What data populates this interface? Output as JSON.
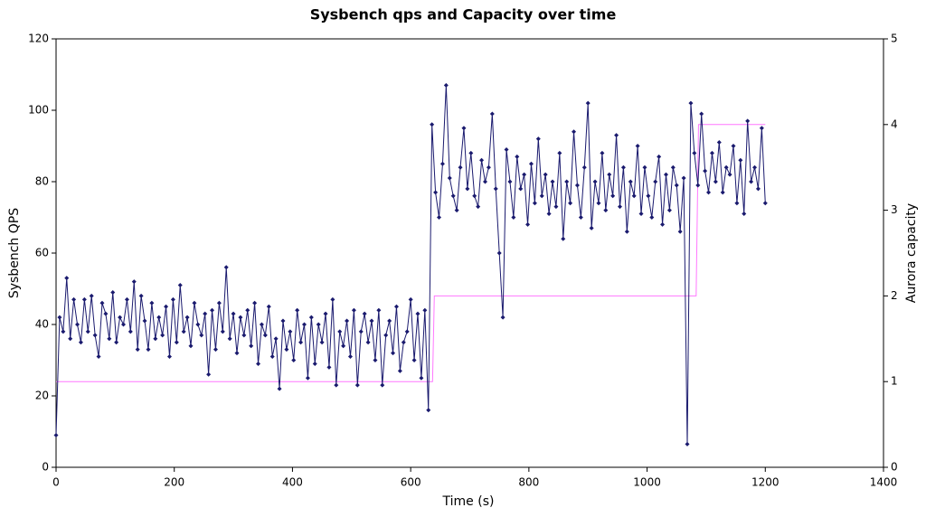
{
  "chart_data": {
    "type": "line",
    "title": "Sysbench qps and Capacity over time",
    "x_label": "Time (s)",
    "y_label": "Sysbench QPS",
    "y2_label": "Aurora capacity",
    "xlim": [
      0,
      1400
    ],
    "xticks": [
      0,
      200,
      400,
      600,
      800,
      1000,
      1200,
      1400
    ],
    "ylim": [
      0,
      120
    ],
    "yticks": [
      0,
      20,
      40,
      60,
      80,
      100,
      120
    ],
    "y2lim": [
      0,
      5
    ],
    "y2ticks": [
      0,
      1,
      2,
      3,
      4,
      5
    ],
    "series": [
      {
        "name": "Sysbench QPS",
        "color": "#1a1a6e",
        "markers": true,
        "x": [
          0,
          6,
          12,
          18,
          24,
          30,
          36,
          42,
          48,
          54,
          60,
          66,
          72,
          78,
          84,
          90,
          96,
          102,
          108,
          114,
          120,
          126,
          132,
          138,
          144,
          150,
          156,
          162,
          168,
          174,
          180,
          186,
          192,
          198,
          204,
          210,
          216,
          222,
          228,
          234,
          240,
          246,
          252,
          258,
          264,
          270,
          276,
          282,
          288,
          294,
          300,
          306,
          312,
          318,
          324,
          330,
          336,
          342,
          348,
          354,
          360,
          366,
          372,
          378,
          384,
          390,
          396,
          402,
          408,
          414,
          420,
          426,
          432,
          438,
          444,
          450,
          456,
          462,
          468,
          474,
          480,
          486,
          492,
          498,
          504,
          510,
          516,
          522,
          528,
          534,
          540,
          546,
          552,
          558,
          564,
          570,
          576,
          582,
          588,
          594,
          600,
          606,
          612,
          618,
          624,
          630,
          636,
          642,
          648,
          654,
          660,
          666,
          672,
          678,
          684,
          690,
          696,
          702,
          708,
          714,
          720,
          726,
          732,
          738,
          744,
          750,
          756,
          762,
          768,
          774,
          780,
          786,
          792,
          798,
          804,
          810,
          816,
          822,
          828,
          834,
          840,
          846,
          852,
          858,
          864,
          870,
          876,
          882,
          888,
          894,
          900,
          906,
          912,
          918,
          924,
          930,
          936,
          942,
          948,
          954,
          960,
          966,
          972,
          978,
          984,
          990,
          996,
          1002,
          1008,
          1014,
          1020,
          1026,
          1032,
          1038,
          1044,
          1050,
          1056,
          1062,
          1068,
          1074,
          1080,
          1086,
          1092,
          1098,
          1104,
          1110,
          1116,
          1122,
          1128,
          1134,
          1140,
          1146,
          1152,
          1158,
          1164,
          1170,
          1176,
          1182,
          1188,
          1194,
          1200
        ],
        "values": [
          9,
          42,
          38,
          53,
          36,
          47,
          40,
          35,
          47,
          38,
          48,
          37,
          31,
          46,
          43,
          36,
          49,
          35,
          42,
          40,
          47,
          38,
          52,
          33,
          48,
          41,
          33,
          46,
          36,
          42,
          37,
          45,
          31,
          47,
          35,
          51,
          38,
          42,
          34,
          46,
          40,
          37,
          43,
          26,
          44,
          33,
          46,
          38,
          56,
          36,
          43,
          32,
          42,
          37,
          44,
          34,
          46,
          29,
          40,
          37,
          45,
          31,
          36,
          22,
          41,
          33,
          38,
          30,
          44,
          35,
          40,
          25,
          42,
          29,
          40,
          35,
          43,
          28,
          47,
          23,
          38,
          34,
          41,
          31,
          44,
          23,
          38,
          43,
          35,
          41,
          30,
          44,
          23,
          37,
          41,
          32,
          45,
          27,
          35,
          38,
          47,
          30,
          43,
          25,
          44,
          16,
          96,
          77,
          70,
          85,
          107,
          81,
          76,
          72,
          84,
          95,
          78,
          88,
          76,
          73,
          86,
          80,
          84,
          99,
          78,
          60,
          42,
          89,
          80,
          70,
          87,
          78,
          82,
          68,
          85,
          74,
          92,
          76,
          82,
          71,
          80,
          73,
          88,
          64,
          80,
          74,
          94,
          79,
          70,
          84,
          102,
          67,
          80,
          74,
          88,
          72,
          82,
          76,
          93,
          73,
          84,
          66,
          80,
          76,
          90,
          71,
          84,
          76,
          70,
          80,
          87,
          68,
          82,
          72,
          84,
          79,
          66,
          81,
          6.5,
          102,
          88,
          79,
          99,
          83,
          77,
          88,
          80,
          91,
          77,
          84,
          82,
          90,
          74,
          86,
          71,
          97,
          80,
          84,
          78,
          95,
          74
        ]
      },
      {
        "name": "Aurora capacity",
        "color": "#ff77ff",
        "axis": "y2",
        "markers": false,
        "x": [
          0,
          637,
          640,
          1083,
          1087,
          1200
        ],
        "values": [
          1,
          1,
          2,
          2,
          4,
          4
        ]
      }
    ]
  }
}
